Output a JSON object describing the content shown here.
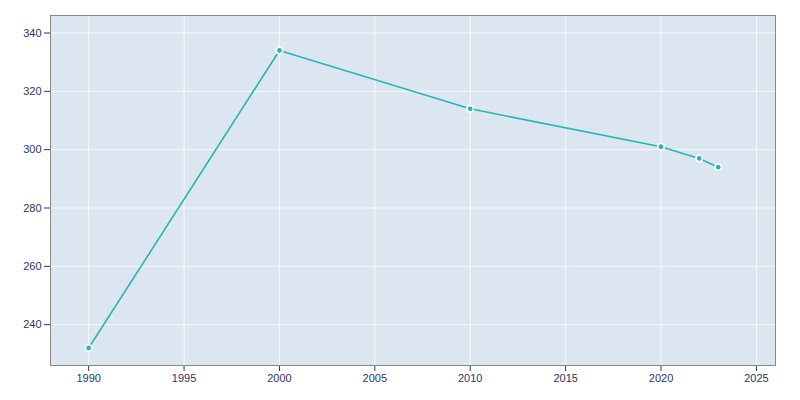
{
  "chart_data": {
    "type": "line",
    "x": [
      1990,
      2000,
      2010,
      2020,
      2022,
      2023
    ],
    "values": [
      232,
      334,
      314,
      301,
      297,
      294
    ],
    "color": "#2ab5b5",
    "marker": "circle",
    "xlim": [
      1988,
      2026
    ],
    "ylim": [
      226,
      346
    ],
    "xticks": [
      1990,
      1995,
      2000,
      2005,
      2010,
      2015,
      2020,
      2025
    ],
    "yticks": [
      240,
      260,
      280,
      300,
      320,
      340
    ],
    "grid": true
  }
}
